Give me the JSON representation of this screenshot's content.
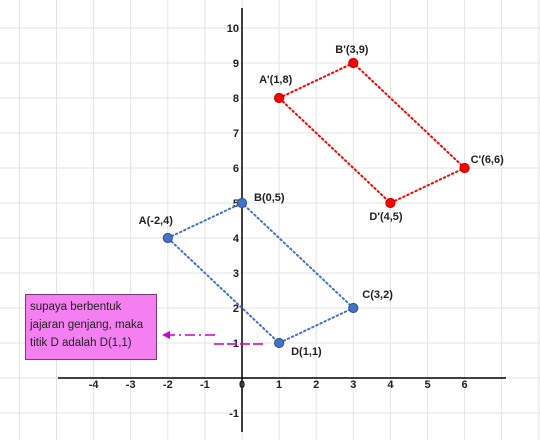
{
  "chart_data": {
    "type": "scatter",
    "xlim": [
      -5,
      7
    ],
    "ylim": [
      -1,
      11
    ],
    "x_ticks": [
      "-4",
      "-3",
      "-2",
      "-1",
      "0",
      "1",
      "2",
      "3",
      "4",
      "5",
      "6"
    ],
    "y_ticks": [
      "-1",
      "1",
      "2",
      "3",
      "4",
      "5",
      "6",
      "7",
      "8",
      "9",
      "10"
    ],
    "grid": true,
    "series": [
      {
        "color": "#4472c4",
        "points": [
          {
            "label": "A(-2,4)",
            "x": -2,
            "y": 4
          },
          {
            "label": "B(0,5)",
            "x": 0,
            "y": 5
          },
          {
            "label": "C(3,2)",
            "x": 3,
            "y": 2
          },
          {
            "label": "D(1,1)",
            "x": 1,
            "y": 1
          }
        ]
      },
      {
        "color": "#ff0000",
        "points": [
          {
            "label": "A'(1,8)",
            "x": 1,
            "y": 8
          },
          {
            "label": "B'(3,9)",
            "x": 3,
            "y": 9
          },
          {
            "label": "C'(6,6)",
            "x": 6,
            "y": 6
          },
          {
            "label": "D'(4,5)",
            "x": 4,
            "y": 5
          }
        ]
      }
    ]
  },
  "note": {
    "lines": [
      "supaya berbentuk",
      "jajaran genjang, maka",
      "titik D adalah D(1,1)"
    ],
    "color": "#f47ff1",
    "arrow_color": "#cc00cc"
  }
}
